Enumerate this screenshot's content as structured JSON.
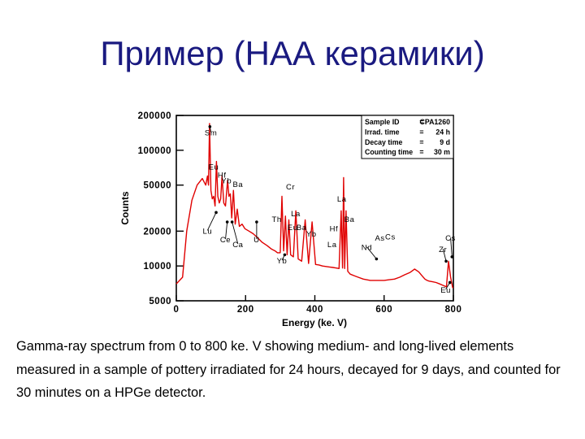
{
  "slide": {
    "title": "Пример (НАА керамики)",
    "caption": "Gamma-ray spectrum from 0 to 800 ke. V showing medium- and long-lived elements measured in a sample of pottery irradiated for 24 hours, decayed for 9 days, and counted for 30 minutes on a HPGe detector."
  },
  "chart_data": {
    "type": "line",
    "title": "",
    "xlabel": "Energy (ke. V)",
    "ylabel": "Counts",
    "xlim": [
      0,
      800
    ],
    "ylim": [
      5000,
      200000
    ],
    "yscale": "log",
    "x_ticks": [
      0,
      200,
      400,
      600,
      800
    ],
    "y_ticks": [
      {
        "value": 5000,
        "label": "5000"
      },
      {
        "value": 10000,
        "label": "10000"
      },
      {
        "value": 20000,
        "label": "20000"
      },
      {
        "value": 50000,
        "label": "50000"
      },
      {
        "value": 100000,
        "label": "100000"
      },
      {
        "value": 200000,
        "label": "200000"
      }
    ],
    "line_color": "#e00000",
    "info_box": [
      {
        "label": "Sample ID",
        "value": "CPA1260"
      },
      {
        "label": "Irrad. time",
        "value": "24 h"
      },
      {
        "label": "Decay time",
        "value": "9 d"
      },
      {
        "label": "Counting time",
        "value": "30 m"
      }
    ],
    "series": [
      {
        "x": [
          0,
          18,
          30,
          45,
          60,
          75,
          85,
          90,
          93,
          96,
          100,
          104,
          108,
          112,
          116,
          120,
          124,
          128,
          132,
          137,
          142,
          148,
          152,
          156,
          160,
          165,
          170,
          176,
          182,
          190,
          198,
          210,
          222,
          235,
          248,
          262,
          275,
          285,
          292,
          300,
          305,
          310,
          315,
          320,
          325,
          330,
          338,
          345,
          352,
          362,
          372,
          382,
          392,
          402,
          412,
          422,
          432,
          442,
          452,
          462,
          470,
          476,
          480,
          483,
          486,
          490,
          495,
          502,
          515,
          525,
          540,
          560,
          580,
          600,
          615,
          630,
          645,
          660,
          675,
          688,
          700,
          710,
          718,
          724,
          730,
          740,
          750,
          760,
          770,
          780,
          786,
          792,
          798,
          800
        ],
        "y": [
          7000,
          8000,
          20000,
          37000,
          50000,
          57000,
          50000,
          60000,
          50000,
          170000,
          45000,
          38000,
          40000,
          33000,
          80000,
          40000,
          35000,
          38000,
          60000,
          35000,
          33000,
          55000,
          40000,
          42000,
          26000,
          45000,
          23000,
          31000,
          22000,
          23000,
          21000,
          20000,
          19000,
          17500,
          16000,
          15000,
          14000,
          13500,
          13000,
          13000,
          40000,
          13500,
          27000,
          12500,
          25000,
          12500,
          12000,
          30000,
          11500,
          11000,
          25000,
          10500,
          24000,
          10300,
          10200,
          10000,
          9900,
          9800,
          9700,
          9600,
          9500,
          30000,
          9600,
          58000,
          9500,
          30000,
          9000,
          8500,
          8200,
          8000,
          7700,
          7500,
          7500,
          7500,
          7600,
          7700,
          8000,
          8400,
          8800,
          9400,
          8900,
          8200,
          7700,
          7500,
          7400,
          7300,
          7200,
          7000,
          6800,
          6600,
          11000,
          8000,
          6500,
          6500
        ]
      }
    ],
    "peak_labels": [
      {
        "text": "Sm",
        "x": 100,
        "y": 135000,
        "target_x": 97,
        "target_y": 160000
      },
      {
        "text": "Eu",
        "x": 108,
        "y": 68000
      },
      {
        "text": "Hf",
        "x": 132,
        "y": 58000
      },
      {
        "text": "Yb",
        "x": 145,
        "y": 52000
      },
      {
        "text": "Ba",
        "x": 178,
        "y": 48000
      },
      {
        "text": "Cr",
        "x": 330,
        "y": 46000
      },
      {
        "text": "La",
        "x": 478,
        "y": 36000
      },
      {
        "text": "La",
        "x": 345,
        "y": 27000
      },
      {
        "text": "Ba",
        "x": 500,
        "y": 24000
      },
      {
        "text": "Th",
        "x": 290,
        "y": 24000
      },
      {
        "text": "Eu",
        "x": 336,
        "y": 20500
      },
      {
        "text": "Ba",
        "x": 362,
        "y": 20500
      },
      {
        "text": "Hf",
        "x": 455,
        "y": 20000
      },
      {
        "text": "Yb",
        "x": 390,
        "y": 18000
      },
      {
        "text": "Lu",
        "x": 90,
        "y": 19000,
        "target_x": 115,
        "target_y": 29000
      },
      {
        "text": "Ce",
        "x": 142,
        "y": 16000,
        "target_x": 147,
        "target_y": 24000
      },
      {
        "text": "Ca",
        "x": 178,
        "y": 14500,
        "target_x": 161,
        "target_y": 24000
      },
      {
        "text": "U",
        "x": 232,
        "y": 16000,
        "target_x": 232,
        "target_y": 24000
      },
      {
        "text": "La",
        "x": 450,
        "y": 14500
      },
      {
        "text": "As",
        "x": 588,
        "y": 16500
      },
      {
        "text": "Cs",
        "x": 618,
        "y": 17000
      },
      {
        "text": "Nd",
        "x": 550,
        "y": 13700,
        "target_x": 578,
        "target_y": 11500
      },
      {
        "text": "Cs",
        "x": 792,
        "y": 16500,
        "target_x": 796,
        "target_y": 12000
      },
      {
        "text": "Zr",
        "x": 770,
        "y": 13200,
        "target_x": 779,
        "target_y": 11000
      },
      {
        "text": "Yb",
        "x": 305,
        "y": 10500,
        "target_x": 313,
        "target_y": 12500
      },
      {
        "text": "Eu",
        "x": 778,
        "y": 5900,
        "target_x": 790,
        "target_y": 7200
      }
    ]
  }
}
